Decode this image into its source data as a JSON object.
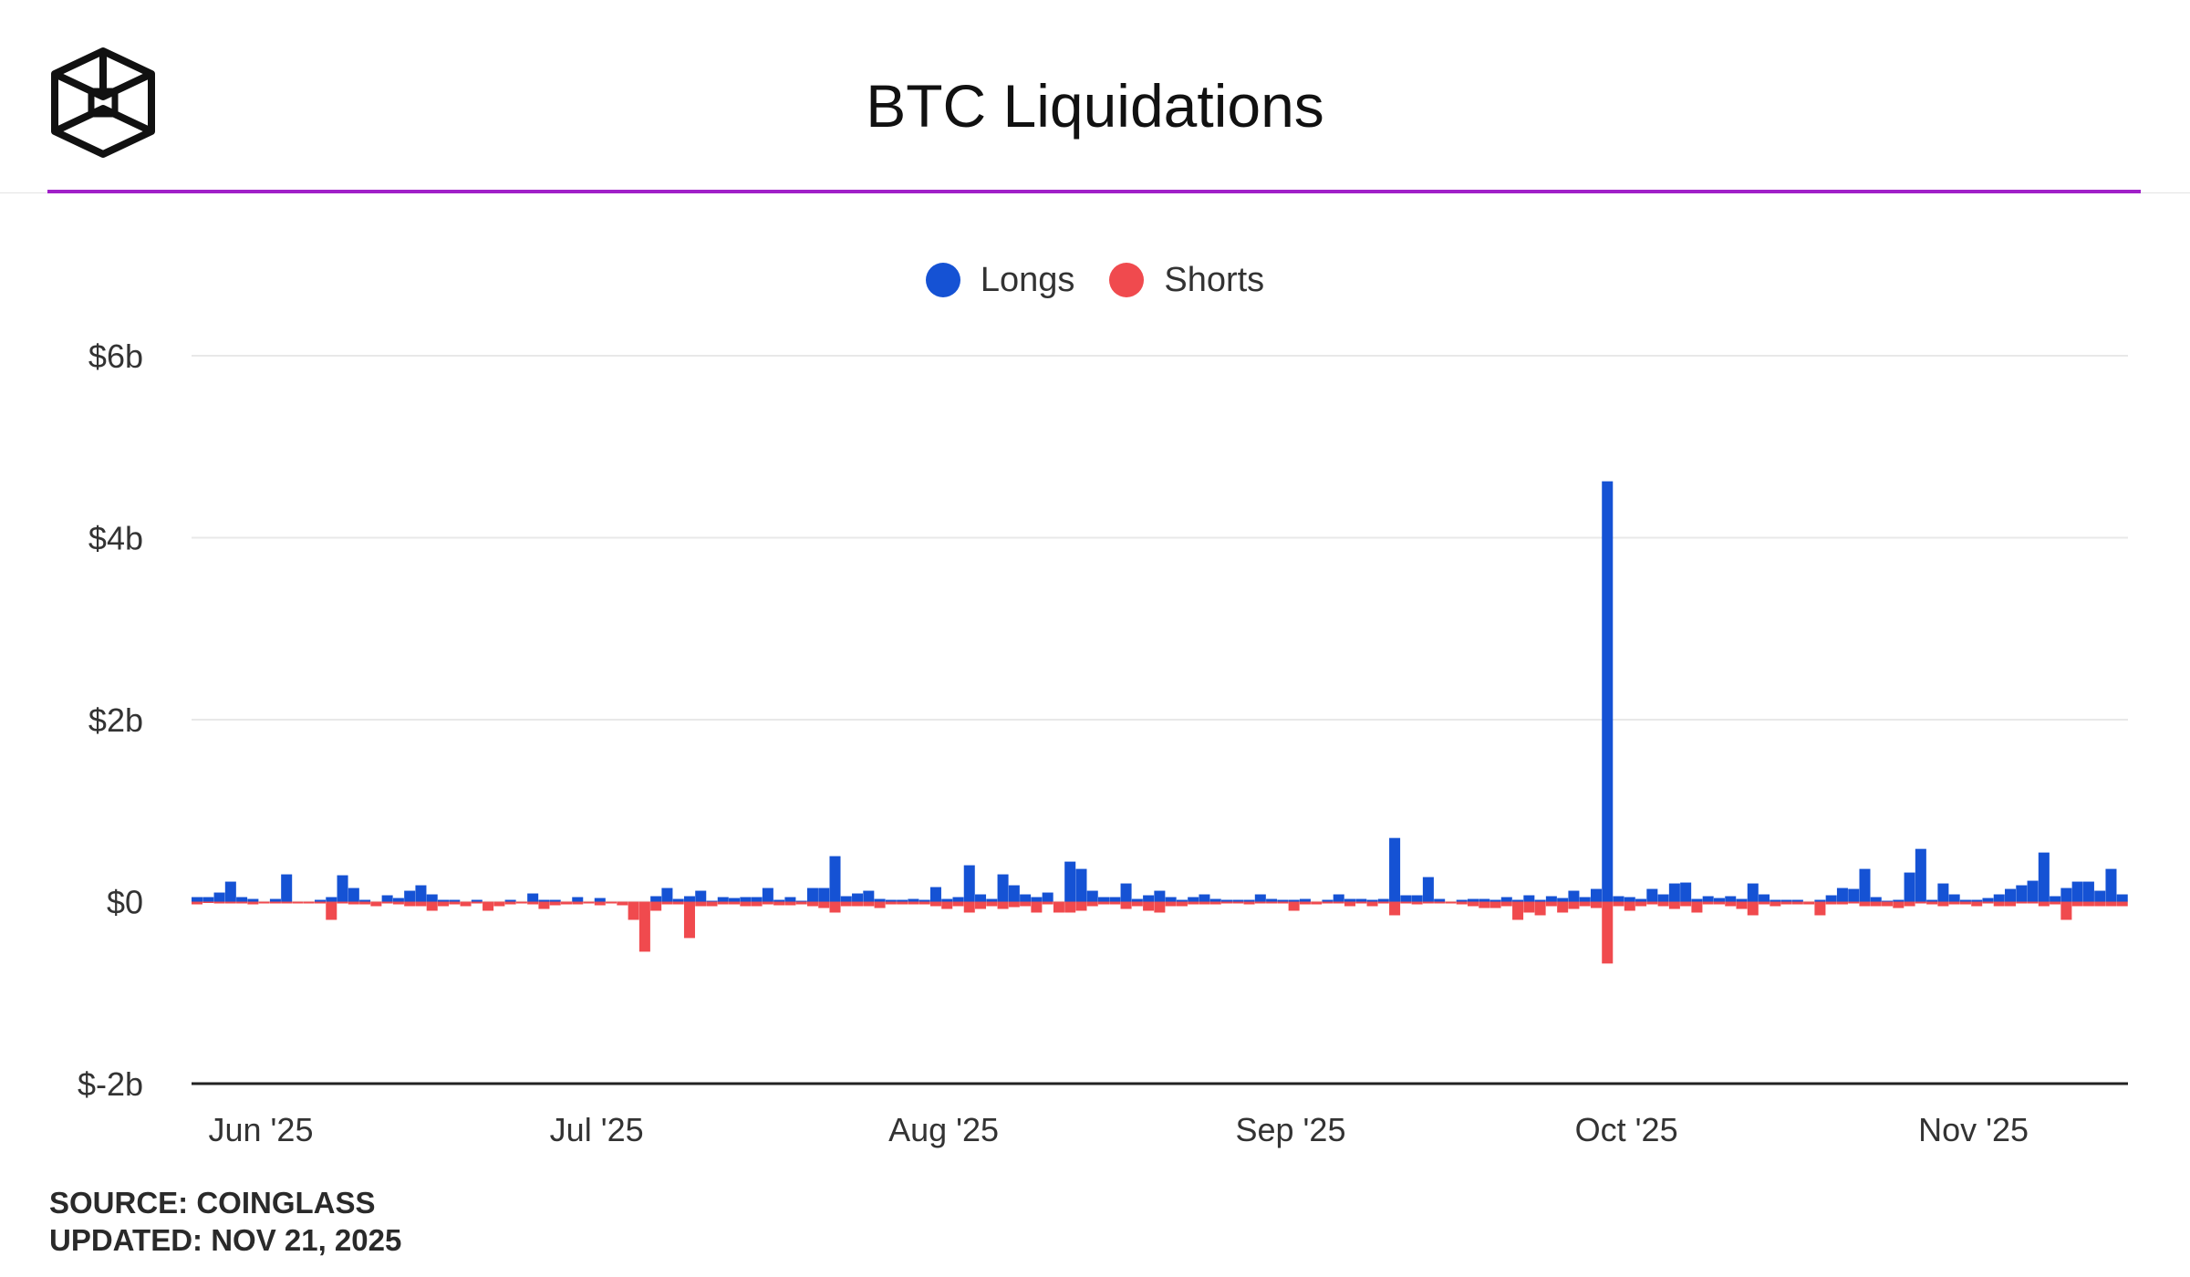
{
  "header": {
    "title": "BTC Liquidations",
    "logo_icon": "cube-logo-icon"
  },
  "legend": {
    "items": [
      {
        "label": "Longs",
        "color": "#1552d4"
      },
      {
        "label": "Shorts",
        "color": "#f04a4e"
      }
    ]
  },
  "footer": {
    "source": "SOURCE: COINGLASS",
    "updated": "UPDATED: NOV 21, 2025"
  },
  "chart_data": {
    "type": "bar",
    "title": "BTC Liquidations",
    "xlabel": "",
    "ylabel": "",
    "ylim": [
      -2,
      6
    ],
    "y_ticks": [
      6,
      4,
      2,
      0,
      -2
    ],
    "y_tick_labels": [
      "$6b",
      "$4b",
      "$2b",
      "$0",
      "$-2b"
    ],
    "x_tick_labels": [
      "Jun '25",
      "Jul '25",
      "Aug '25",
      "Sep '25",
      "Oct '25",
      "Nov '25"
    ],
    "x_tick_day_index": [
      0,
      30,
      61,
      92,
      122,
      153
    ],
    "grid": true,
    "unit": "USD billions",
    "series": [
      {
        "name": "Longs",
        "color": "#1552d4",
        "values": [
          0.05,
          0.05,
          0.1,
          0.22,
          0.05,
          0.03,
          0,
          0.03,
          0.3,
          0,
          0,
          0.02,
          0.05,
          0.29,
          0.15,
          0.02,
          0,
          0.07,
          0.04,
          0.12,
          0.18,
          0.08,
          0.02,
          0.02,
          0,
          0.02,
          0,
          0,
          0.02,
          0,
          0.09,
          0.02,
          0.02,
          0,
          0.05,
          0,
          0.04,
          0,
          0,
          0,
          0,
          0.06,
          0.15,
          0.03,
          0.06,
          0.12,
          0.01,
          0.05,
          0.04,
          0.05,
          0.05,
          0.15,
          0.02,
          0.05,
          0.01,
          0.15,
          0.15,
          0.5,
          0.06,
          0.09,
          0.12,
          0.03,
          0.02,
          0.02,
          0.03,
          0.02,
          0.16,
          0.03,
          0.05,
          0.4,
          0.08,
          0.03,
          0.3,
          0.18,
          0.08,
          0.05,
          0.1,
          0,
          0.44,
          0.36,
          0.12,
          0.05,
          0.05,
          0.2,
          0.03,
          0.07,
          0.12,
          0.05,
          0.02,
          0.05,
          0.08,
          0.03,
          0.02,
          0.02,
          0.02,
          0.08,
          0.03,
          0.02,
          0.02,
          0.03,
          0,
          0.02,
          0.08,
          0.03,
          0.03,
          0.02,
          0.03,
          0.7,
          0.07,
          0.07,
          0.27,
          0.03,
          0,
          0.02,
          0.03,
          0.03,
          0.02,
          0.05,
          0.02,
          0.07,
          0.02,
          0.06,
          0.04,
          0.12,
          0.05,
          0.14,
          4.62,
          0.06,
          0.05,
          0.03,
          0.14,
          0.08,
          0.2,
          0.21,
          0.03,
          0.06,
          0.04,
          0.06,
          0.03,
          0.2,
          0.08,
          0.02,
          0.02,
          0.02,
          0,
          0.02,
          0.07,
          0.15,
          0.14,
          0.36,
          0.05,
          0.01,
          0.02,
          0.32,
          0.58,
          0.02,
          0.2,
          0.08,
          0.02,
          0.02,
          0.04,
          0.08,
          0.14,
          0.18,
          0.23,
          0.54,
          0.06,
          0.15,
          0.22,
          0.22,
          0.12,
          0.36,
          0.08
        ]
      },
      {
        "name": "Shorts",
        "color": "#f04a4e",
        "values": [
          -0.03,
          -0.01,
          -0.02,
          -0.02,
          -0.02,
          -0.03,
          -0.02,
          -0.02,
          -0.02,
          -0.02,
          -0.02,
          -0.02,
          -0.2,
          -0.02,
          -0.03,
          -0.03,
          -0.05,
          -0.02,
          -0.03,
          -0.05,
          -0.05,
          -0.1,
          -0.05,
          -0.03,
          -0.05,
          -0.02,
          -0.1,
          -0.05,
          -0.03,
          -0.02,
          -0.03,
          -0.08,
          -0.04,
          -0.03,
          -0.03,
          -0.02,
          -0.04,
          -0.02,
          -0.04,
          -0.2,
          -0.55,
          -0.1,
          -0.03,
          -0.03,
          -0.4,
          -0.05,
          -0.05,
          -0.03,
          -0.03,
          -0.05,
          -0.05,
          -0.03,
          -0.04,
          -0.04,
          -0.03,
          -0.05,
          -0.07,
          -0.12,
          -0.05,
          -0.05,
          -0.05,
          -0.07,
          -0.03,
          -0.03,
          -0.03,
          -0.03,
          -0.05,
          -0.08,
          -0.05,
          -0.12,
          -0.08,
          -0.05,
          -0.08,
          -0.06,
          -0.05,
          -0.12,
          -0.03,
          -0.12,
          -0.12,
          -0.1,
          -0.05,
          -0.03,
          -0.03,
          -0.08,
          -0.05,
          -0.1,
          -0.12,
          -0.05,
          -0.05,
          -0.03,
          -0.03,
          -0.03,
          -0.02,
          -0.02,
          -0.03,
          -0.02,
          -0.02,
          -0.02,
          -0.1,
          -0.03,
          -0.03,
          -0.02,
          -0.02,
          -0.05,
          -0.02,
          -0.05,
          -0.02,
          -0.15,
          -0.02,
          -0.03,
          -0.02,
          -0.02,
          -0.02,
          -0.03,
          -0.05,
          -0.07,
          -0.07,
          -0.05,
          -0.2,
          -0.12,
          -0.15,
          -0.05,
          -0.12,
          -0.08,
          -0.05,
          -0.07,
          -0.68,
          -0.05,
          -0.1,
          -0.05,
          -0.03,
          -0.05,
          -0.08,
          -0.05,
          -0.12,
          -0.03,
          -0.03,
          -0.05,
          -0.08,
          -0.15,
          -0.03,
          -0.05,
          -0.03,
          -0.03,
          -0.03,
          -0.15,
          -0.03,
          -0.03,
          -0.02,
          -0.05,
          -0.05,
          -0.05,
          -0.07,
          -0.05,
          -0.02,
          -0.03,
          -0.05,
          -0.03,
          -0.03,
          -0.05,
          -0.02,
          -0.05,
          -0.05,
          -0.02,
          -0.02,
          -0.05,
          -0.03,
          -0.2,
          -0.05,
          -0.05,
          -0.05,
          -0.05,
          -0.05
        ]
      }
    ]
  }
}
